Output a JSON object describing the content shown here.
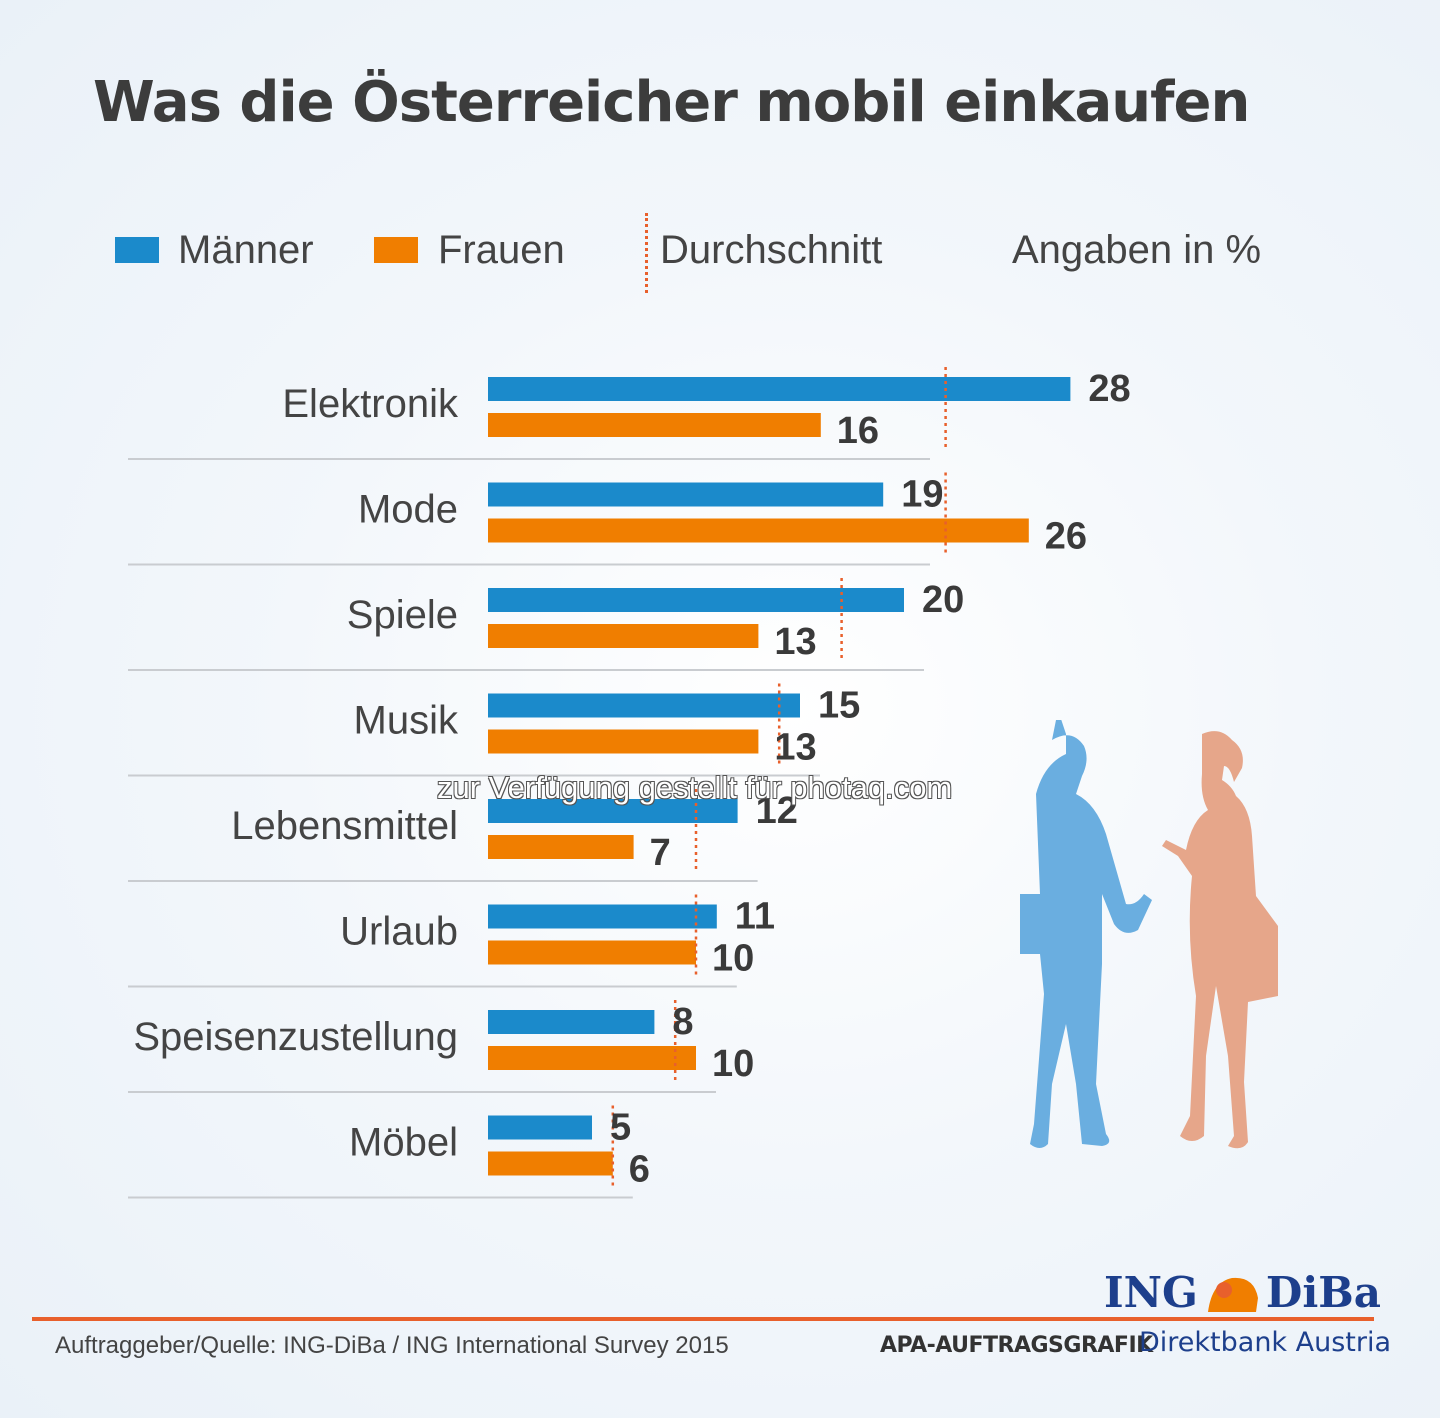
{
  "title": "Was die Österreicher mobil einkaufen",
  "legend": {
    "men": "Männer",
    "women": "Frauen",
    "average": "Durchschnitt",
    "unit_note": "Angaben in %"
  },
  "colors": {
    "men": "#1b8acb",
    "women": "#f07e00",
    "average": "#e8602c",
    "men_silhouette": "#6aaee0",
    "women_silhouette": "#e6a68a"
  },
  "chart_data": {
    "type": "bar",
    "orientation": "horizontal",
    "title": "Was die Österreicher mobil einkaufen",
    "unit": "Angaben in %",
    "categories": [
      "Elektronik",
      "Mode",
      "Spiele",
      "Musik",
      "Lebensmittel",
      "Urlaub",
      "Speisenzustellung",
      "Möbel"
    ],
    "series": [
      {
        "name": "Männer",
        "values": [
          28,
          19,
          20,
          15,
          12,
          11,
          8,
          5
        ]
      },
      {
        "name": "Frauen",
        "values": [
          16,
          26,
          13,
          13,
          7,
          10,
          10,
          6
        ]
      },
      {
        "name": "Durchschnitt",
        "values": [
          22,
          22,
          17,
          14,
          10,
          10,
          9,
          6
        ]
      }
    ],
    "xlim": [
      0,
      30
    ],
    "legend": "top",
    "grid": false
  },
  "watermark": "zur Verfügung gestellt für photaq.com",
  "footer": {
    "source": "Auftraggeber/Quelle: ING-DiBa / ING International Survey 2015",
    "apa": "APA-AUFTRAGSGRAFIK",
    "tagline": "Direktbank Austria",
    "logo_left": "ING",
    "logo_right": "DiBa"
  }
}
